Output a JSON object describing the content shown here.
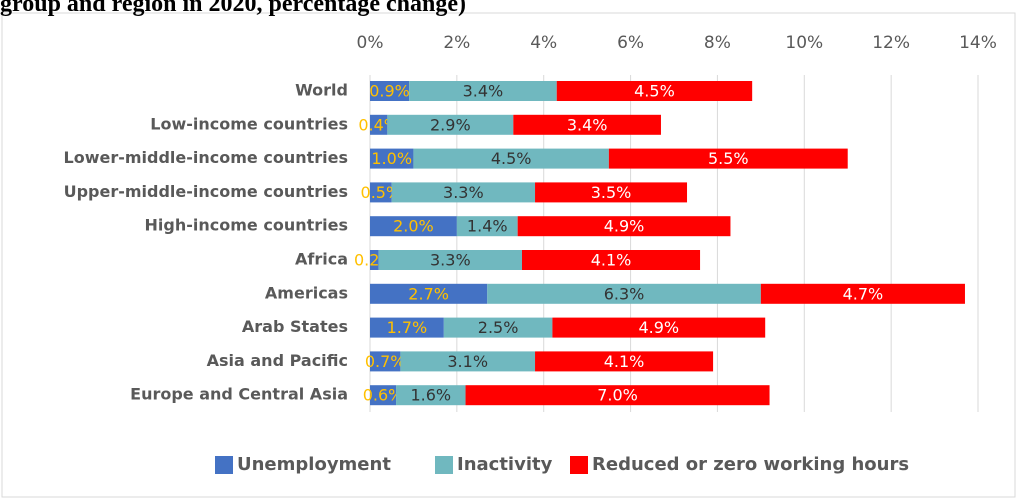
{
  "chart_data": {
    "type": "stacked_barh",
    "title": "group and region in 2020, percentage change)",
    "categories": [
      "World",
      "Low-income countries",
      "Lower-middle-income countries",
      "Upper-middle-income countries",
      "High-income countries",
      "Africa",
      "Americas",
      "Arab States",
      "Asia and Pacific",
      "Europe and Central Asia"
    ],
    "series": [
      {
        "name": "Unemployment",
        "color": "#4472c4",
        "label_color": "#ffc000",
        "values": [
          0.9,
          0.4,
          1.0,
          0.5,
          2.0,
          0.2,
          2.7,
          1.7,
          0.7,
          0.6
        ],
        "value_labels": [
          "0.9%",
          "0.4%",
          "1.0%",
          "0.5%",
          "2.0%",
          "0.2%",
          "2.7%",
          "1.7%",
          "0.7%",
          "0.6%"
        ]
      },
      {
        "name": "Inactivity",
        "color": "#70b8bf",
        "label_color": "#333333",
        "values": [
          3.4,
          2.9,
          4.5,
          3.3,
          1.4,
          3.3,
          6.3,
          2.5,
          3.1,
          1.6
        ],
        "value_labels": [
          "3.4%",
          "2.9%",
          "4.5%",
          "3.3%",
          "1.4%",
          "3.3%",
          "6.3%",
          "2.5%",
          "3.1%",
          "1.6%"
        ]
      },
      {
        "name": "Reduced or zero working hours",
        "color": "#ff0000",
        "label_color": "#ffffff",
        "values": [
          4.5,
          3.4,
          5.5,
          3.5,
          4.9,
          4.1,
          4.7,
          4.9,
          4.1,
          7.0
        ],
        "value_labels": [
          "4.5%",
          "3.4%",
          "5.5%",
          "3.5%",
          "4.9%",
          "4.1%",
          "4.7%",
          "4.9%",
          "4.1%",
          "7.0%"
        ]
      }
    ],
    "xlim": [
      0,
      14
    ],
    "xticks": [
      {
        "value": 0,
        "label": "0%"
      },
      {
        "value": 2,
        "label": "2%"
      },
      {
        "value": 4,
        "label": "4%"
      },
      {
        "value": 6,
        "label": "6%"
      },
      {
        "value": 8,
        "label": "8%"
      },
      {
        "value": 10,
        "label": "10%"
      },
      {
        "value": 12,
        "label": "12%"
      },
      {
        "value": 14,
        "label": "14%"
      }
    ],
    "grid": true,
    "legend": "bottom"
  }
}
